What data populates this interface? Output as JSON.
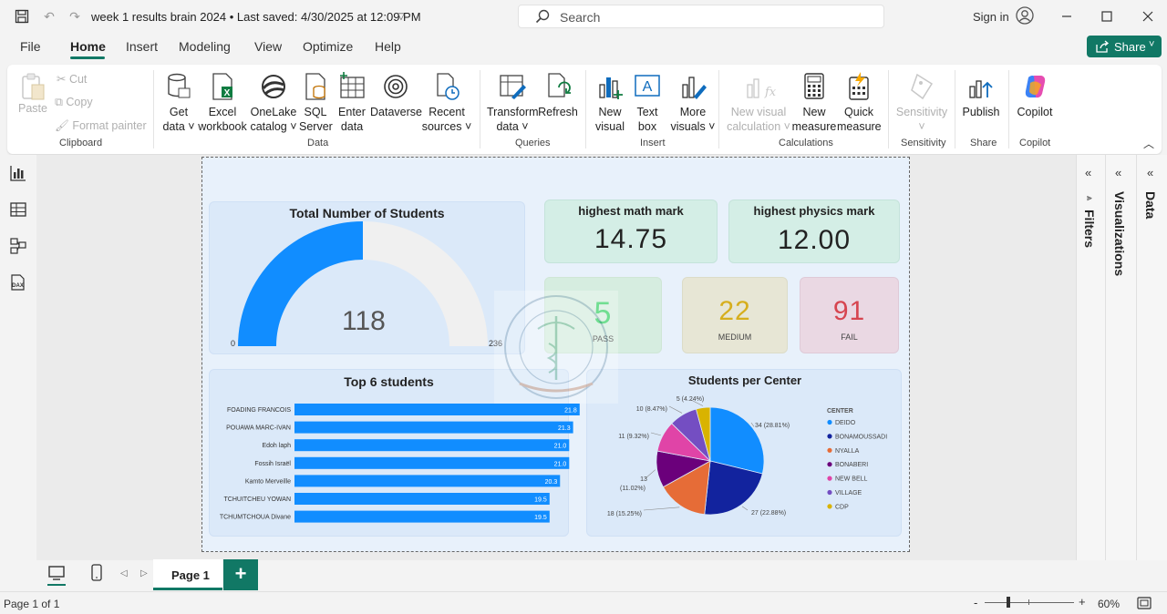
{
  "app": {
    "title": "week 1 results brain 2024  •  Last saved: 4/30/2025 at 12:09 PM",
    "search_placeholder": "Search",
    "signin": "Sign in",
    "share": "Share"
  },
  "menu": [
    "File",
    "Home",
    "Insert",
    "Modeling",
    "View",
    "Optimize",
    "Help"
  ],
  "ribbon": {
    "clipboard": {
      "paste": "Paste",
      "cut": "Cut",
      "copy": "Copy",
      "format_painter": "Format painter",
      "group": "Clipboard"
    },
    "data": {
      "group": "Data",
      "buttons": [
        {
          "l1": "Get",
          "l2": "data ˅"
        },
        {
          "l1": "Excel",
          "l2": "workbook"
        },
        {
          "l1": "OneLake",
          "l2": "catalog ˅"
        },
        {
          "l1": "SQL",
          "l2": "Server"
        },
        {
          "l1": "Enter",
          "l2": "data"
        },
        {
          "l1": "Dataverse",
          "l2": ""
        },
        {
          "l1": "Recent",
          "l2": "sources ˅"
        }
      ]
    },
    "queries": {
      "group": "Queries",
      "transform_l1": "Transform",
      "transform_l2": "data ˅",
      "refresh": "Refresh"
    },
    "insert": {
      "group": "Insert",
      "new_visual_l1": "New",
      "new_visual_l2": "visual",
      "text_box_l1": "Text",
      "text_box_l2": "box",
      "more_visuals_l1": "More",
      "more_visuals_l2": "visuals ˅"
    },
    "calculations": {
      "group": "Calculations",
      "nvc_l1": "New visual",
      "nvc_l2": "calculation ˅",
      "new_measure_l1": "New",
      "new_measure_l2": "measure",
      "quick_measure_l1": "Quick",
      "quick_measure_l2": "measure"
    },
    "sensitivity": {
      "group": "Sensitivity",
      "label": "Sensitivity",
      "l2": "˅"
    },
    "share": {
      "group": "Share",
      "label": "Publish"
    },
    "copilot": {
      "group": "Copilot",
      "label": "Copilot"
    }
  },
  "report": {
    "gauge": {
      "title": "Total Number of Students",
      "value": "118",
      "min": "0",
      "max": "236",
      "fraction": 0.5
    },
    "kpi_math": {
      "title": "highest math mark",
      "value": "14.75"
    },
    "kpi_physics": {
      "title": "highest physics mark",
      "value": "12.00"
    },
    "pass": {
      "value": "5",
      "label": "PASS"
    },
    "medium": {
      "value": "22",
      "label": "MEDIUM"
    },
    "fail": {
      "value": "91",
      "label": "FAIL"
    },
    "top_title": "Top 6 students",
    "pie_title": "Students per Center",
    "legend_title": "CENTER"
  },
  "chart_data": [
    {
      "type": "bar",
      "title": "Top 6 students",
      "orientation": "horizontal",
      "categories": [
        "FOADING FRANCOIS",
        "POUAWA MARC-IVAN",
        "Edoh laph",
        "Fossih Israël",
        "Kamto Merveille",
        "TCHUITCHEU YOWAN",
        "TCHUMTCHOUA Divane"
      ],
      "values": [
        21.8,
        21.3,
        21.0,
        21.0,
        20.3,
        19.5,
        19.5
      ],
      "value_labels": [
        "21.8",
        "21.3",
        "21.0",
        "21.0",
        "20.3",
        "19.5",
        "19.5"
      ],
      "xlim": [
        0,
        23
      ],
      "color": "#118dff"
    },
    {
      "type": "pie",
      "title": "Students per Center",
      "legend_title": "CENTER",
      "legend_position": "right",
      "slices": [
        {
          "name": "DEIDO",
          "value": 34,
          "label": "34 (28.81%)",
          "color": "#118dff"
        },
        {
          "name": "BONAMOUSSADI",
          "value": 27,
          "label": "27 (22.88%)",
          "color": "#12239e"
        },
        {
          "name": "NYALLA",
          "value": 18,
          "label": "18 (15.25%)",
          "color": "#e66c37"
        },
        {
          "name": "BONABERI",
          "value": 13,
          "label": "13 (11.02%)",
          "color": "#6b007b"
        },
        {
          "name": "NEW BELL",
          "value": 11,
          "label": "11 (9.32%)",
          "color": "#e044a7"
        },
        {
          "name": "VILLAGE",
          "value": 10,
          "label": "10 (8.47%)",
          "color": "#744ec2"
        },
        {
          "name": "CDP",
          "value": 5,
          "label": "5 (4.24%)",
          "color": "#d9b300"
        }
      ]
    }
  ],
  "panes": {
    "filters": "Filters",
    "visualizations": "Visualizations",
    "data": "Data"
  },
  "pages": {
    "tab": "Page 1"
  },
  "status": {
    "page": "Page 1 of 1",
    "zoom": "60%",
    "zoom_level": 0.6
  },
  "colors": {
    "accent": "#117865",
    "bar": "#118dff",
    "pass": "#3fd26b",
    "medium": "#d6ae1d",
    "fail": "#d64550"
  }
}
